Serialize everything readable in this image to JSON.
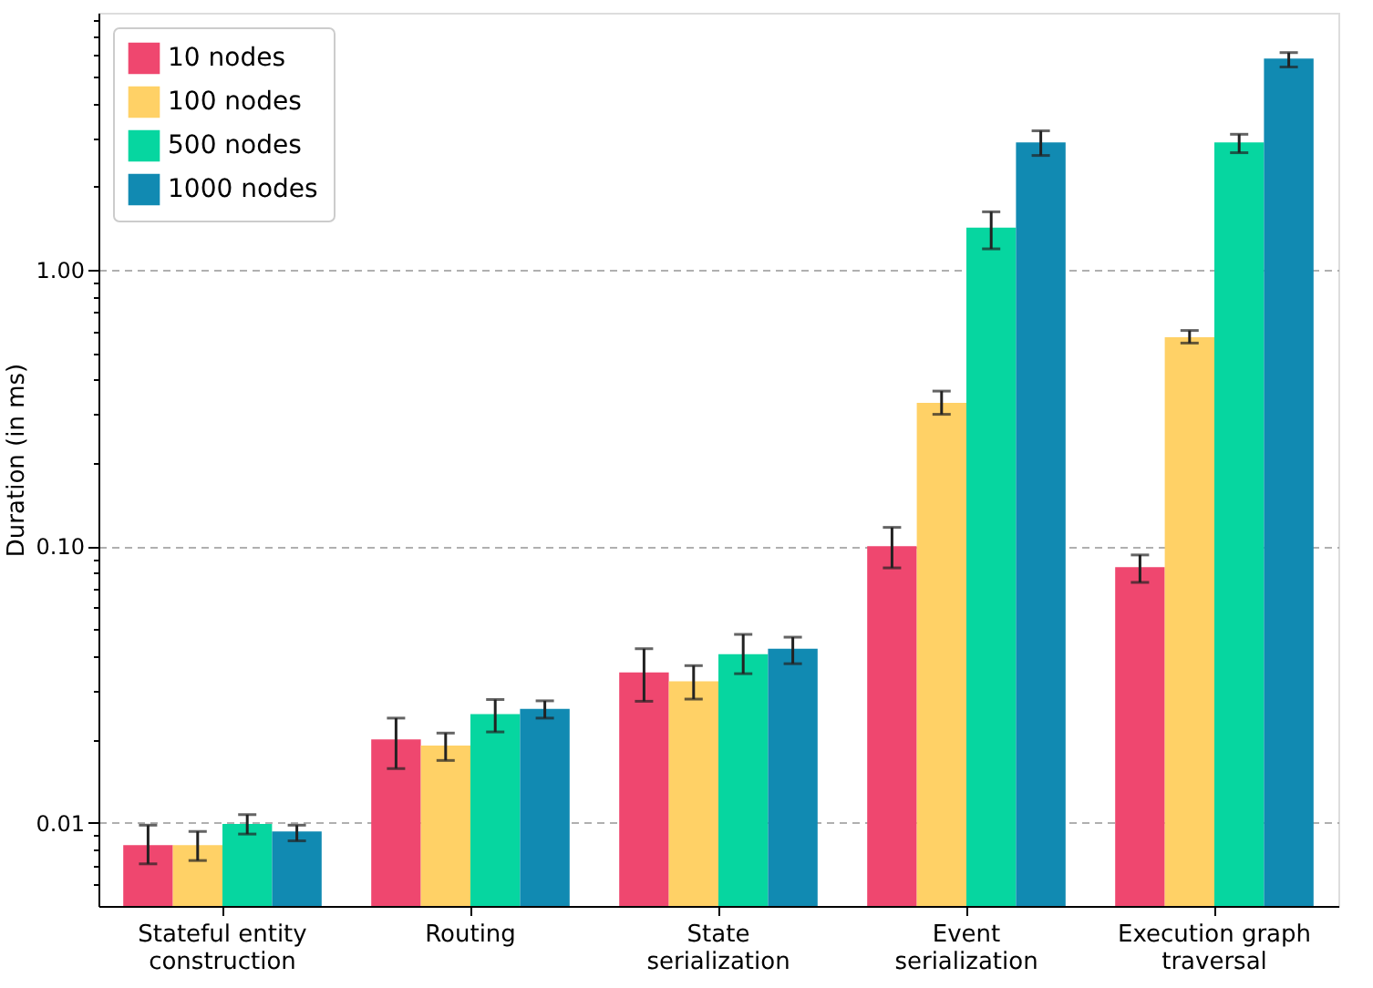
{
  "chart_data": {
    "type": "bar",
    "ylabel": "Duration (in ms)",
    "log": "y",
    "grid": "y",
    "legend": "top left",
    "categories": [
      "Stateful entity\nconstruction",
      "Routing",
      "State\nserialization",
      "Event\nserialization",
      "Execution graph\ntraversal"
    ],
    "ylim": [
      0.005,
      8.5
    ],
    "yticks": [
      {
        "value": 0.006,
        "label": null
      },
      {
        "value": 0.007,
        "label": null
      },
      {
        "value": 0.008,
        "label": null
      },
      {
        "value": 0.009,
        "label": null
      },
      {
        "value": 0.01,
        "label": "0.01"
      },
      {
        "value": 0.02,
        "label": null
      },
      {
        "value": 0.03,
        "label": null
      },
      {
        "value": 0.04,
        "label": null
      },
      {
        "value": 0.05,
        "label": null
      },
      {
        "value": 0.06,
        "label": null
      },
      {
        "value": 0.07,
        "label": null
      },
      {
        "value": 0.08,
        "label": null
      },
      {
        "value": 0.09,
        "label": null
      },
      {
        "value": 0.1,
        "label": "0.10"
      },
      {
        "value": 0.2,
        "label": null
      },
      {
        "value": 0.3,
        "label": null
      },
      {
        "value": 0.4,
        "label": null
      },
      {
        "value": 0.5,
        "label": null
      },
      {
        "value": 0.6,
        "label": null
      },
      {
        "value": 0.7,
        "label": null
      },
      {
        "value": 0.8,
        "label": null
      },
      {
        "value": 0.9,
        "label": null
      },
      {
        "value": 1,
        "label": "1.00"
      },
      {
        "value": 2,
        "label": null
      },
      {
        "value": 3,
        "label": null
      },
      {
        "value": 4,
        "label": null
      },
      {
        "value": 5,
        "label": null
      },
      {
        "value": 6,
        "label": null
      },
      {
        "value": 7,
        "label": null
      },
      {
        "value": 8,
        "label": null
      }
    ],
    "series": [
      {
        "name": "10 nodes",
        "color": "#ef476f",
        "values": [
          0.0083,
          0.02,
          0.035,
          0.1,
          0.084
        ],
        "errors": [
          [
            0.0071,
            0.0098
          ],
          [
            0.0157,
            0.0239
          ],
          [
            0.0275,
            0.0426
          ],
          [
            0.0835,
            0.117
          ],
          [
            0.074,
            0.093
          ]
        ]
      },
      {
        "name": "100 nodes",
        "color": "#ffd166",
        "values": [
          0.0083,
          0.019,
          0.0325,
          0.33,
          0.57
        ],
        "errors": [
          [
            0.0073,
            0.0093
          ],
          [
            0.0168,
            0.0211
          ],
          [
            0.028,
            0.037
          ],
          [
            0.3,
            0.364
          ],
          [
            0.543,
            0.603
          ]
        ]
      },
      {
        "name": "500 nodes",
        "color": "#06d6a0",
        "values": [
          0.0099,
          0.0247,
          0.0407,
          1.42,
          2.89
        ],
        "errors": [
          [
            0.0091,
            0.0107
          ],
          [
            0.0213,
            0.0279
          ],
          [
            0.0346,
            0.048
          ],
          [
            1.19,
            1.62
          ],
          [
            2.65,
            3.09
          ]
        ]
      },
      {
        "name": "1000 nodes",
        "color": "#118ab2",
        "values": [
          0.0093,
          0.0258,
          0.0426,
          2.89,
          5.81
        ],
        "errors": [
          [
            0.0086,
            0.0098
          ],
          [
            0.0239,
            0.0276
          ],
          [
            0.0376,
            0.0469
          ],
          [
            2.59,
            3.18
          ],
          [
            5.41,
            6.1
          ]
        ]
      }
    ]
  }
}
